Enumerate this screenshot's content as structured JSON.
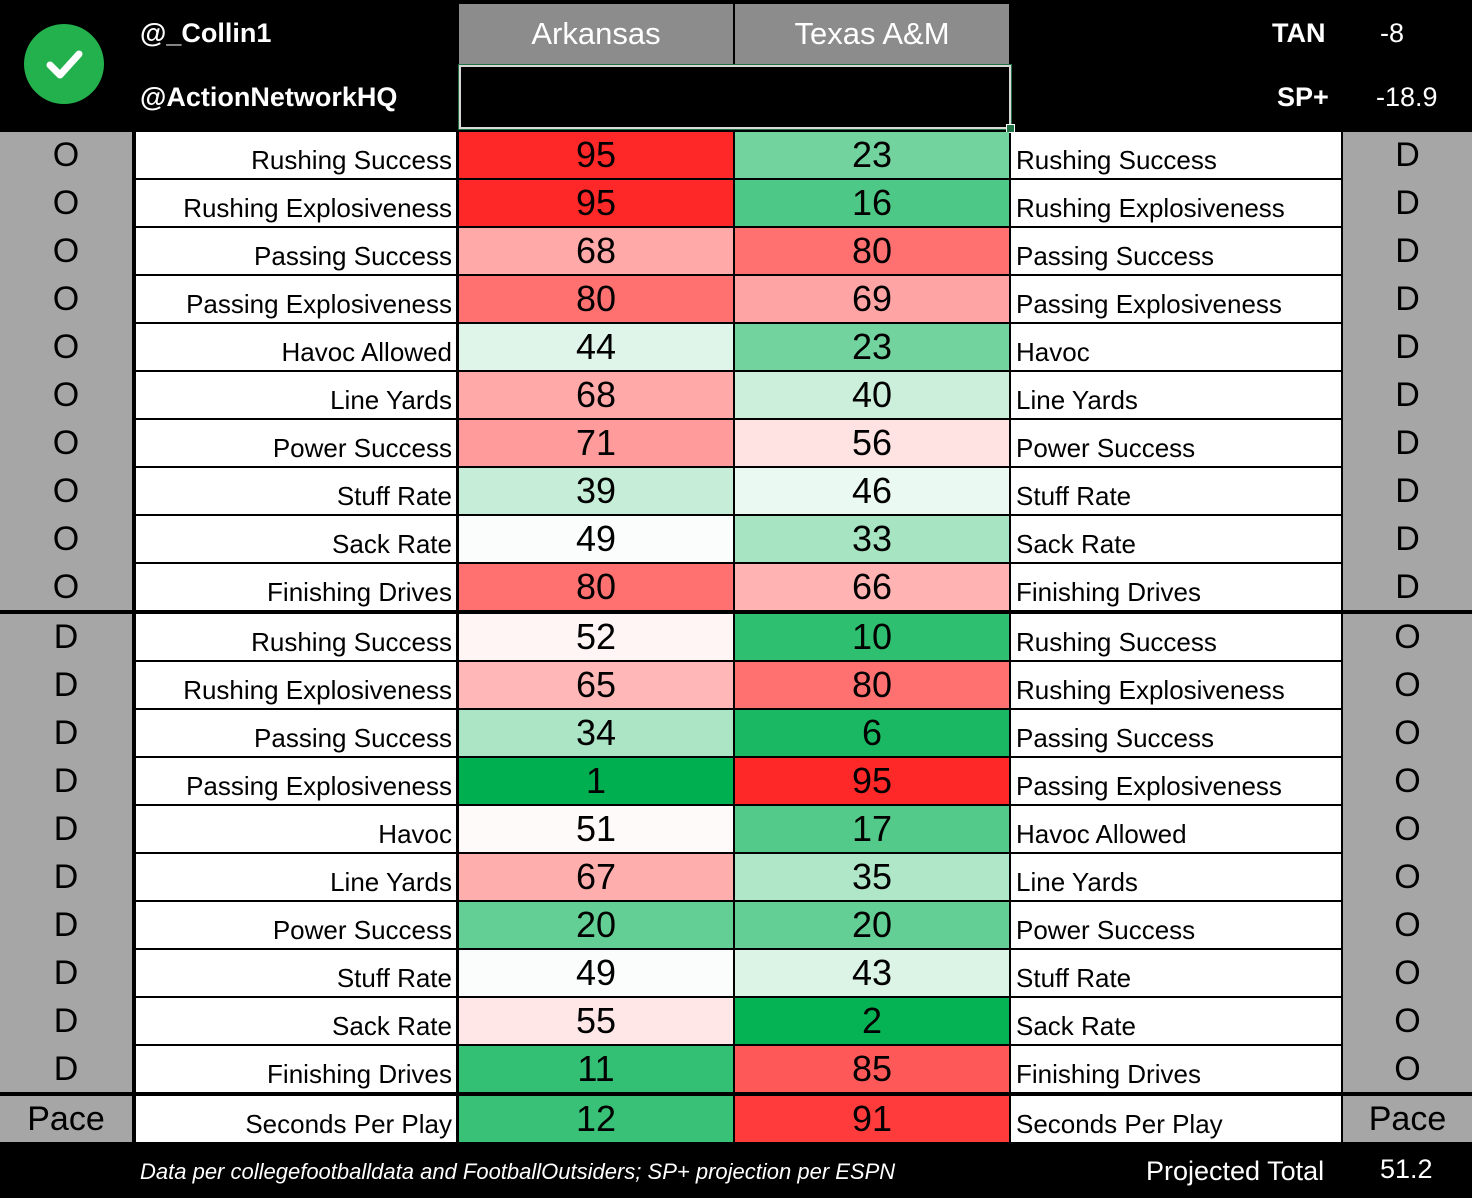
{
  "header": {
    "handle_primary": "@_Collin1",
    "handle_secondary": "@ActionNetworkHQ",
    "team_left": "Arkansas",
    "team_right": "Texas A&M",
    "tan_label": "TAN",
    "tan_value": "-8",
    "sp_label": "SP+",
    "sp_value": "-18.9",
    "check_icon": "check-circle-icon",
    "check_color": "#22b14c"
  },
  "section1": {
    "left_side": "O",
    "right_side": "D",
    "rows": [
      {
        "left_label": "Rushing Success",
        "left_value": "95",
        "right_value": "23",
        "right_label": "Rushing Success"
      },
      {
        "left_label": "Rushing Explosiveness",
        "left_value": "95",
        "right_value": "16",
        "right_label": "Rushing Explosiveness"
      },
      {
        "left_label": "Passing Success",
        "left_value": "68",
        "right_value": "80",
        "right_label": "Passing Success"
      },
      {
        "left_label": "Passing Explosiveness",
        "left_value": "80",
        "right_value": "69",
        "right_label": "Passing Explosiveness"
      },
      {
        "left_label": "Havoc Allowed",
        "left_value": "44",
        "right_value": "23",
        "right_label": "Havoc"
      },
      {
        "left_label": "Line Yards",
        "left_value": "68",
        "right_value": "40",
        "right_label": "Line Yards"
      },
      {
        "left_label": "Power Success",
        "left_value": "71",
        "right_value": "56",
        "right_label": "Power Success"
      },
      {
        "left_label": "Stuff Rate",
        "left_value": "39",
        "right_value": "46",
        "right_label": "Stuff Rate"
      },
      {
        "left_label": "Sack Rate",
        "left_value": "49",
        "right_value": "33",
        "right_label": "Sack Rate"
      },
      {
        "left_label": "Finishing Drives",
        "left_value": "80",
        "right_value": "66",
        "right_label": "Finishing Drives"
      }
    ]
  },
  "section2": {
    "left_side": "D",
    "right_side": "O",
    "rows": [
      {
        "left_label": "Rushing Success",
        "left_value": "52",
        "right_value": "10",
        "right_label": "Rushing Success"
      },
      {
        "left_label": "Rushing Explosiveness",
        "left_value": "65",
        "right_value": "80",
        "right_label": "Rushing Explosiveness"
      },
      {
        "left_label": "Passing Success",
        "left_value": "34",
        "right_value": "6",
        "right_label": "Passing Success"
      },
      {
        "left_label": "Passing Explosiveness",
        "left_value": "1",
        "right_value": "95",
        "right_label": "Passing Explosiveness"
      },
      {
        "left_label": "Havoc",
        "left_value": "51",
        "right_value": "17",
        "right_label": "Havoc Allowed"
      },
      {
        "left_label": "Line Yards",
        "left_value": "67",
        "right_value": "35",
        "right_label": "Line Yards"
      },
      {
        "left_label": "Power Success",
        "left_value": "20",
        "right_value": "20",
        "right_label": "Power Success"
      },
      {
        "left_label": "Stuff Rate",
        "left_value": "49",
        "right_value": "43",
        "right_label": "Stuff Rate"
      },
      {
        "left_label": "Sack Rate",
        "left_value": "55",
        "right_value": "2",
        "right_label": "Sack Rate"
      },
      {
        "left_label": "Finishing Drives",
        "left_value": "11",
        "right_value": "85",
        "right_label": "Finishing Drives"
      }
    ]
  },
  "pace": {
    "left_side": "Pace",
    "right_side": "Pace",
    "left_label": "Seconds Per Play",
    "left_value": "12",
    "right_value": "91",
    "right_label": "Seconds Per Play"
  },
  "footer": {
    "source_note": "Data per collegefootballdata and FootballOutsiders; SP+ projection per ESPN",
    "projected_total_label": "Projected Total",
    "projected_total_value": "51.2"
  }
}
